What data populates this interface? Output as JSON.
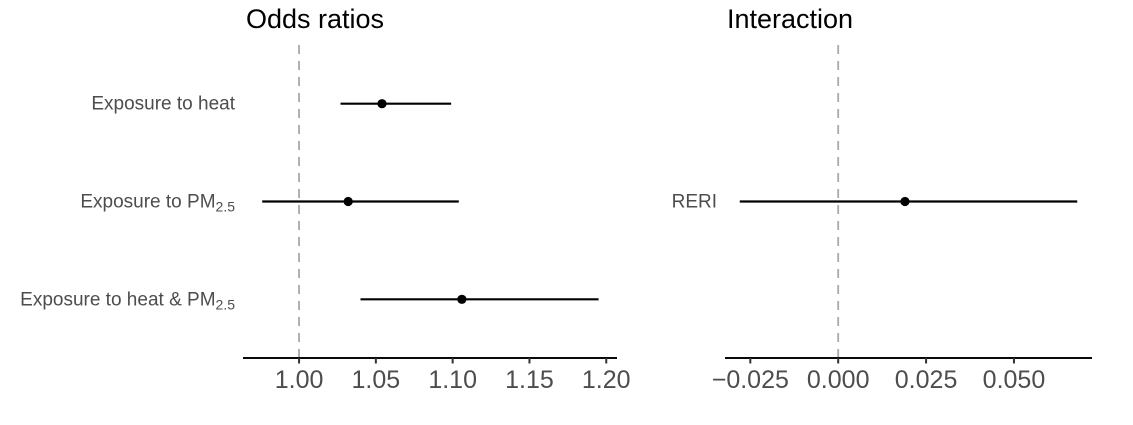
{
  "figure": {
    "kind": "forest-plot",
    "background": "#ffffff"
  },
  "colors": {
    "point": "#000000",
    "ci_line": "#000000",
    "axis_line": "#0a0a0a",
    "tick_mark": "#333333",
    "tick_label": "#4d4d4d",
    "row_label": "#4d4d4d",
    "title": "#000000",
    "reference_line": "#a9a9a9",
    "background": "#ffffff"
  },
  "chart_data": [
    {
      "type": "scatter",
      "variant": "forest",
      "title": "Odds ratios",
      "legend": "none",
      "grid": false,
      "reference_line": 1.0,
      "reference_line_style": "dashed",
      "xlim": [
        0.9635,
        1.207
      ],
      "x_ticks": [
        1.0,
        1.05,
        1.1,
        1.15,
        1.2
      ],
      "x_tick_labels": [
        "1.00",
        "1.05",
        "1.10",
        "1.15",
        "1.20"
      ],
      "rows": [
        {
          "label": "Exposure to heat",
          "label_parts": [
            {
              "t": "Exposure to heat",
              "sub": false
            }
          ],
          "estimate": 1.054,
          "ci_low": 1.027,
          "ci_high": 1.099
        },
        {
          "label": "Exposure to PM2.5",
          "label_parts": [
            {
              "t": "Exposure to PM",
              "sub": false
            },
            {
              "t": "2.5",
              "sub": true
            }
          ],
          "estimate": 1.032,
          "ci_low": 0.976,
          "ci_high": 1.104
        },
        {
          "label": "Exposure to heat & PM2.5",
          "label_parts": [
            {
              "t": "Exposure to heat & PM",
              "sub": false
            },
            {
              "t": "2.5",
              "sub": true
            }
          ],
          "estimate": 1.106,
          "ci_low": 1.04,
          "ci_high": 1.195
        }
      ]
    },
    {
      "type": "scatter",
      "variant": "forest",
      "title": "Interaction",
      "legend": "none",
      "grid": false,
      "reference_line": 0.0,
      "reference_line_style": "dashed",
      "xlim": [
        -0.0322,
        0.0722
      ],
      "x_ticks": [
        -0.025,
        0.0,
        0.025,
        0.05
      ],
      "x_tick_labels": [
        "−0.025",
        "0.000",
        "0.025",
        "0.050"
      ],
      "rows": [
        {
          "label": "RERI",
          "label_parts": [
            {
              "t": "RERI",
              "sub": false
            }
          ],
          "estimate": 0.019,
          "ci_low": -0.028,
          "ci_high": 0.068
        }
      ]
    }
  ]
}
